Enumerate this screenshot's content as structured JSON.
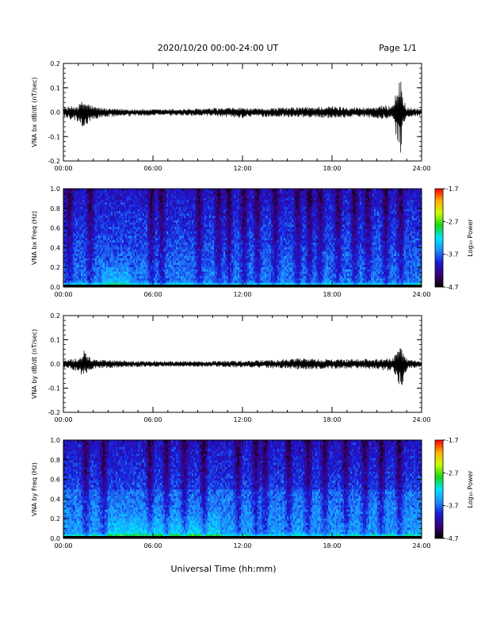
{
  "header": {
    "date_range": "2020/10/20  00:00-24:00 UT",
    "page": "Page 1/1"
  },
  "colors": {
    "spectrogram_map": [
      "#000000",
      "#3a0078",
      "#1a1ad6",
      "#1e90ff",
      "#00e5ff",
      "#16d616",
      "#c8ff00",
      "#ffb000",
      "#ff0000"
    ],
    "trace": "#000000"
  },
  "chart_data": [
    {
      "type": "line",
      "name": "bx_dbdt",
      "ylabel": "VNA bx dB/dt (nT/sec)",
      "ylim": [
        -0.2,
        0.2
      ],
      "yticks": [
        0.2,
        0.1,
        0.0,
        -0.1,
        -0.2
      ],
      "ytick_labels": [
        "0.2",
        "0.1",
        "0.0",
        "-0.1",
        "-0.2"
      ],
      "xlim": [
        0,
        24
      ],
      "xticks": [
        0,
        6,
        12,
        18,
        24
      ],
      "xtick_labels": [
        "00:00",
        "06:00",
        "12:00",
        "18:00",
        "24:00"
      ],
      "envelope": {
        "x": [
          0,
          1,
          1.3,
          1.6,
          2,
          3,
          6,
          9,
          12,
          12.5,
          15,
          18,
          20,
          22,
          22.6,
          22.8,
          23,
          24
        ],
        "upper": [
          0.02,
          0.03,
          0.05,
          0.04,
          0.025,
          0.015,
          0.012,
          0.015,
          0.02,
          0.015,
          0.02,
          0.025,
          0.02,
          0.03,
          0.14,
          0.06,
          0.02,
          0.015
        ],
        "lower": [
          -0.02,
          -0.04,
          -0.07,
          -0.05,
          -0.03,
          -0.02,
          -0.015,
          -0.015,
          -0.025,
          -0.02,
          -0.02,
          -0.025,
          -0.02,
          -0.03,
          -0.18,
          -0.07,
          -0.02,
          -0.015
        ]
      },
      "grid": false,
      "legend": "none"
    },
    {
      "type": "heatmap",
      "name": "bx_spectrogram",
      "ylabel": "VNA bx Freq (Hz)",
      "ylim": [
        0,
        1.0
      ],
      "yticks": [
        1.0,
        0.8,
        0.6,
        0.4,
        0.2,
        0.0
      ],
      "ytick_labels": [
        "1.0",
        "0.8",
        "0.6",
        "0.4",
        "0.2",
        "0.0"
      ],
      "xlim": [
        0,
        24
      ],
      "xticks": [
        0,
        6,
        12,
        18,
        24
      ],
      "xtick_labels": [
        "00:00",
        "06:00",
        "12:00",
        "18:00",
        "24:00"
      ],
      "colorbar": {
        "label": "Log₁₀ Power",
        "range": [
          -4.7,
          -1.7
        ],
        "ticks": [
          -1.7,
          -2.7,
          -3.7,
          -4.7
        ],
        "tick_labels": [
          "-1.7",
          "-2.7",
          "-3.7",
          "-4.7"
        ]
      },
      "dark_bands_hours": [
        0.4,
        1.8,
        5.9,
        6.6,
        9.1,
        10.4,
        11.1,
        12.1,
        13.0,
        14.2,
        15.7,
        16.5,
        17.2,
        18.4,
        19.5,
        20.4,
        21.6,
        22.6
      ],
      "low_freq_enhancement_hours": [
        2.5,
        4.5
      ]
    },
    {
      "type": "line",
      "name": "by_dbdt",
      "ylabel": "VNA by dB/dt (nT/sec)",
      "ylim": [
        -0.2,
        0.2
      ],
      "yticks": [
        0.2,
        0.1,
        0.0,
        -0.1,
        -0.2
      ],
      "ytick_labels": [
        "0.2",
        "0.1",
        "0.0",
        "-0.1",
        "-0.2"
      ],
      "xlim": [
        0,
        24
      ],
      "xticks": [
        0,
        6,
        12,
        18,
        24
      ],
      "xtick_labels": [
        "00:00",
        "06:00",
        "12:00",
        "18:00",
        "24:00"
      ],
      "envelope": {
        "x": [
          0,
          1,
          1.4,
          1.7,
          2,
          4,
          6,
          9,
          12,
          15,
          16,
          18,
          20,
          22,
          22.7,
          22.9,
          23.2,
          24
        ],
        "upper": [
          0.015,
          0.025,
          0.07,
          0.03,
          0.02,
          0.015,
          0.012,
          0.012,
          0.015,
          0.02,
          0.025,
          0.02,
          0.02,
          0.025,
          0.08,
          0.03,
          0.02,
          0.015
        ],
        "lower": [
          -0.015,
          -0.03,
          -0.06,
          -0.03,
          -0.02,
          -0.015,
          -0.012,
          -0.012,
          -0.015,
          -0.02,
          -0.025,
          -0.02,
          -0.02,
          -0.03,
          -0.11,
          -0.04,
          -0.02,
          -0.015
        ]
      },
      "grid": false,
      "legend": "none"
    },
    {
      "type": "heatmap",
      "name": "by_spectrogram",
      "ylabel": "VNA by Freq (Hz)",
      "ylim": [
        0,
        1.0
      ],
      "yticks": [
        1.0,
        0.8,
        0.6,
        0.4,
        0.2,
        0.0
      ],
      "ytick_labels": [
        "1.0",
        "0.8",
        "0.6",
        "0.4",
        "0.2",
        "0.0"
      ],
      "xlim": [
        0,
        24
      ],
      "xticks": [
        0,
        6,
        12,
        18,
        24
      ],
      "xtick_labels": [
        "00:00",
        "06:00",
        "12:00",
        "18:00",
        "24:00"
      ],
      "colorbar": {
        "label": "Log₁₀ Power",
        "range": [
          -4.7,
          -1.7
        ],
        "ticks": [
          -1.7,
          -2.7,
          -3.7,
          -4.7
        ],
        "tick_labels": [
          "-1.7",
          "-2.7",
          "-3.7",
          "-4.7"
        ]
      },
      "dark_bands_hours": [
        1.5,
        2.7,
        5.8,
        6.9,
        8.1,
        9.4,
        11.7,
        12.9,
        13.5,
        15.1,
        16.4,
        17.5,
        18.9,
        20.2,
        21.3,
        22.5
      ],
      "low_freq_enhancement_hours": [
        3.0,
        10.5
      ]
    }
  ],
  "xlabel": "Universal Time (hh:mm)"
}
